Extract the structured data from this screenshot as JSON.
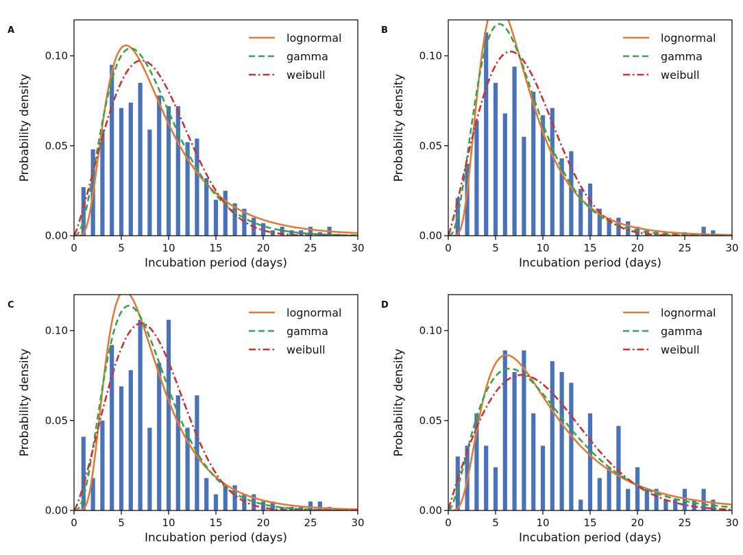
{
  "colors": {
    "bar": "#4a72b8",
    "lognormal": "#e07b39",
    "gamma": "#3aa34a",
    "weibull": "#c93232",
    "axis": "#111111"
  },
  "chart_data": [
    {
      "panel": "A",
      "type": "bar",
      "xlabel": "Incubation period (days)",
      "ylabel": "Probability density",
      "xlim": [
        0,
        30
      ],
      "ylim": [
        0,
        0.12
      ],
      "xticks": [
        0,
        5,
        10,
        15,
        20,
        25,
        30
      ],
      "yticks": [
        0.0,
        0.05,
        0.1
      ],
      "ytick_labels": [
        "0.00",
        "0.05",
        "0.10"
      ],
      "bars": {
        "x": [
          1,
          2,
          3,
          4,
          5,
          6,
          7,
          8,
          9,
          10,
          11,
          12,
          13,
          14,
          15,
          16,
          17,
          18,
          19,
          20,
          21,
          22,
          23,
          24,
          25,
          26,
          27,
          28
        ],
        "values": [
          0.027,
          0.048,
          0.059,
          0.095,
          0.071,
          0.074,
          0.085,
          0.059,
          0.078,
          0.072,
          0.072,
          0.052,
          0.054,
          0.032,
          0.02,
          0.025,
          0.018,
          0.015,
          0.01,
          0.007,
          0.003,
          0.005,
          0.003,
          0.003,
          0.005,
          0.002,
          0.005,
          0.001
        ]
      },
      "legend": [
        "lognormal",
        "gamma",
        "weibull"
      ],
      "series": [
        {
          "name": "lognormal",
          "mu": 2.04,
          "sigma": 0.58
        },
        {
          "name": "gamma",
          "shape": 3.6,
          "scale": 2.3
        },
        {
          "name": "weibull",
          "shape": 2.2,
          "scale": 9.4
        }
      ]
    },
    {
      "panel": "B",
      "type": "bar",
      "xlabel": "Incubation period (days)",
      "ylabel": "Probability density",
      "xlim": [
        0,
        30
      ],
      "ylim": [
        0,
        0.12
      ],
      "xticks": [
        0,
        5,
        10,
        15,
        20,
        25,
        30
      ],
      "yticks": [
        0.0,
        0.05,
        0.1
      ],
      "ytick_labels": [
        "0.00",
        "0.05",
        "0.10"
      ],
      "bars": {
        "x": [
          1,
          2,
          3,
          4,
          5,
          6,
          7,
          8,
          9,
          10,
          11,
          12,
          13,
          14,
          15,
          16,
          17,
          18,
          19,
          20,
          21,
          22,
          23,
          24,
          25,
          26,
          27,
          28
        ],
        "values": [
          0.021,
          0.04,
          0.064,
          0.113,
          0.085,
          0.068,
          0.094,
          0.055,
          0.08,
          0.067,
          0.071,
          0.043,
          0.047,
          0.026,
          0.029,
          0.015,
          0.01,
          0.01,
          0.008,
          0.005,
          0.003,
          0.003,
          0.002,
          0.002,
          0.002,
          0.001,
          0.005,
          0.003
        ]
      },
      "legend": [
        "lognormal",
        "gamma",
        "weibull"
      ],
      "series": [
        {
          "name": "lognormal",
          "mu": 1.91,
          "sigma": 0.52
        },
        {
          "name": "gamma",
          "shape": 3.7,
          "scale": 2.0
        },
        {
          "name": "weibull",
          "shape": 2.15,
          "scale": 8.8
        }
      ]
    },
    {
      "panel": "C",
      "type": "bar",
      "xlabel": "Incubation period (days)",
      "ylabel": "Probability density",
      "xlim": [
        0,
        30
      ],
      "ylim": [
        0,
        0.12
      ],
      "xticks": [
        0,
        5,
        10,
        15,
        20,
        25,
        30
      ],
      "yticks": [
        0.0,
        0.05,
        0.1
      ],
      "ytick_labels": [
        "0.00",
        "0.05",
        "0.10"
      ],
      "bars": {
        "x": [
          1,
          2,
          3,
          4,
          5,
          6,
          7,
          8,
          9,
          10,
          11,
          12,
          13,
          14,
          15,
          16,
          17,
          18,
          19,
          20,
          21,
          22,
          23,
          24,
          25,
          26,
          27,
          28
        ],
        "values": [
          0.041,
          0.018,
          0.05,
          0.092,
          0.069,
          0.078,
          0.106,
          0.046,
          0.082,
          0.106,
          0.064,
          0.046,
          0.064,
          0.018,
          0.009,
          0.014,
          0.014,
          0.009,
          0.009,
          0.005,
          0.005,
          0.002,
          0.002,
          0.002,
          0.005,
          0.005,
          0.002,
          0.001
        ]
      },
      "legend": [
        "lognormal",
        "gamma",
        "weibull"
      ],
      "series": [
        {
          "name": "lognormal",
          "mu": 1.96,
          "sigma": 0.53
        },
        {
          "name": "gamma",
          "shape": 3.9,
          "scale": 2.0
        },
        {
          "name": "weibull",
          "shape": 2.3,
          "scale": 9.1
        }
      ]
    },
    {
      "panel": "D",
      "type": "bar",
      "xlabel": "Incubation period (days)",
      "ylabel": "Probability density",
      "xlim": [
        0,
        30
      ],
      "ylim": [
        0,
        0.12
      ],
      "xticks": [
        0,
        5,
        10,
        15,
        20,
        25,
        30
      ],
      "yticks": [
        0.0,
        0.05,
        0.1
      ],
      "ytick_labels": [
        "0.00",
        "0.05",
        "0.10"
      ],
      "bars": {
        "x": [
          1,
          2,
          3,
          4,
          5,
          6,
          7,
          8,
          9,
          10,
          11,
          12,
          13,
          14,
          15,
          16,
          17,
          18,
          19,
          20,
          21,
          22,
          23,
          24,
          25,
          26,
          27,
          28
        ],
        "values": [
          0.03,
          0.036,
          0.054,
          0.036,
          0.024,
          0.089,
          0.077,
          0.089,
          0.054,
          0.036,
          0.083,
          0.077,
          0.071,
          0.006,
          0.054,
          0.018,
          0.024,
          0.047,
          0.012,
          0.024,
          0.012,
          0.012,
          0.006,
          0.006,
          0.012,
          0.006,
          0.012,
          0.006
        ]
      },
      "legend": [
        "lognormal",
        "gamma",
        "weibull"
      ],
      "series": [
        {
          "name": "lognormal",
          "mu": 2.2,
          "sigma": 0.62
        },
        {
          "name": "gamma",
          "shape": 2.8,
          "scale": 3.6
        },
        {
          "name": "weibull",
          "shape": 1.95,
          "scale": 11.2
        }
      ]
    }
  ]
}
